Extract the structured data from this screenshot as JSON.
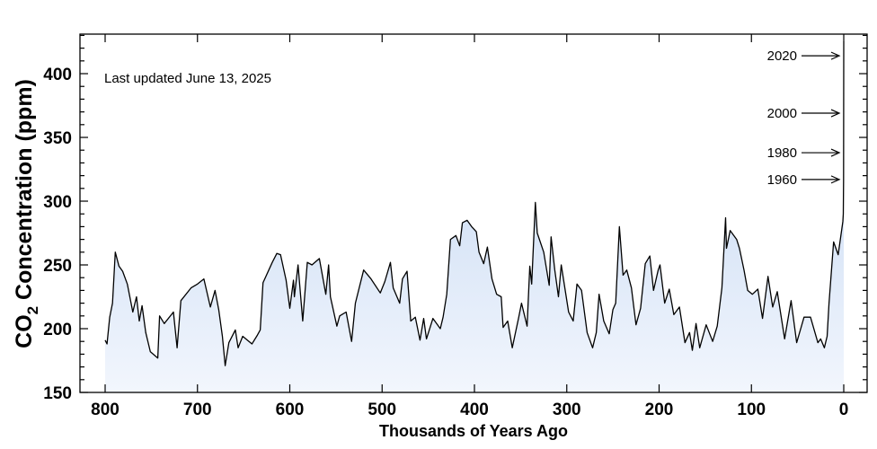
{
  "chart_data": {
    "type": "area",
    "title": "",
    "annotation": "Last updated June 13, 2025",
    "xlabel": "Thousands of Years Ago",
    "ylabel_main": "CO",
    "ylabel_sub": "2",
    "ylabel_rest": " Concentration (ppm)",
    "xlim": [
      800,
      0
    ],
    "ylim": [
      150,
      431
    ],
    "x_reversed": true,
    "x_ticks": [
      800,
      700,
      600,
      500,
      400,
      300,
      200,
      100,
      0
    ],
    "x_tick_labels": [
      "800",
      "700",
      "600",
      "500",
      "400",
      "300",
      "200",
      "100",
      "0"
    ],
    "y_ticks": [
      150,
      200,
      250,
      300,
      350,
      400
    ],
    "y_tick_labels": [
      "150",
      "200",
      "250",
      "300",
      "350",
      "400"
    ],
    "y_minor_step": 10,
    "grid": false,
    "colors": {
      "line": "#000000",
      "fill_top": "#bcd2f0",
      "fill_bottom": "#f2f6fd"
    },
    "year_markers": [
      {
        "label": "2020",
        "ppm": 414
      },
      {
        "label": "2000",
        "ppm": 369
      },
      {
        "label": "1980",
        "ppm": 338
      },
      {
        "label": "1960",
        "ppm": 317
      }
    ],
    "series": [
      {
        "x": [
          800,
          798,
          795,
          792,
          789,
          785,
          781,
          776,
          770,
          766,
          763,
          760,
          756,
          751,
          743,
          741,
          736,
          726,
          722,
          718,
          707,
          700,
          693,
          686,
          681,
          677,
          673,
          670,
          666,
          659,
          656,
          651,
          641,
          635,
          632,
          629,
          619,
          614,
          610,
          604,
          600,
          596,
          595,
          591,
          586,
          581,
          576,
          568,
          561,
          558,
          556,
          549,
          546,
          539,
          533,
          529,
          520,
          512,
          502,
          497,
          491,
          488,
          481,
          478,
          473,
          469,
          464,
          459,
          455,
          452,
          445,
          437,
          434,
          430,
          426,
          420,
          416,
          413,
          408,
          403,
          398,
          395,
          390,
          386,
          381,
          376,
          371,
          369,
          364,
          359,
          352,
          349,
          343,
          340,
          338,
          334,
          332,
          325,
          319,
          317,
          313,
          309,
          306,
          298,
          293,
          289,
          284,
          278,
          272,
          268,
          265,
          260,
          254,
          250,
          247,
          243,
          239,
          235,
          230,
          225,
          220,
          215,
          210,
          206,
          201,
          199,
          194,
          189,
          184,
          178,
          172,
          167,
          164,
          160,
          156,
          149,
          142,
          137,
          132,
          128,
          127,
          123,
          116,
          113,
          108,
          104,
          99,
          93,
          88,
          82,
          77,
          72,
          64,
          57,
          51,
          43,
          36,
          28,
          25,
          21,
          18,
          16,
          11,
          6,
          1,
          0.5,
          0.2,
          0.1,
          0
        ],
        "y": [
          191,
          188,
          209,
          220,
          260,
          249,
          245,
          235,
          213,
          225,
          206,
          218,
          197,
          182,
          177,
          210,
          204,
          213,
          185,
          222,
          232,
          235,
          239,
          217,
          230,
          215,
          194,
          171,
          189,
          199,
          185,
          194,
          188,
          195,
          199,
          236,
          252,
          259,
          258,
          238,
          216,
          238,
          225,
          250,
          206,
          252,
          250,
          255,
          227,
          250,
          225,
          202,
          210,
          213,
          190,
          220,
          246,
          239,
          228,
          237,
          252,
          232,
          220,
          239,
          245,
          206,
          209,
          191,
          208,
          192,
          208,
          200,
          209,
          227,
          270,
          273,
          265,
          283,
          285,
          280,
          276,
          260,
          251,
          264,
          239,
          227,
          225,
          201,
          206,
          185,
          209,
          220,
          202,
          249,
          235,
          299,
          275,
          260,
          234,
          272,
          246,
          225,
          250,
          213,
          206,
          235,
          230,
          197,
          185,
          197,
          227,
          206,
          196,
          215,
          220,
          280,
          242,
          246,
          232,
          203,
          216,
          251,
          257,
          230,
          246,
          250,
          220,
          231,
          211,
          217,
          189,
          197,
          183,
          204,
          185,
          203,
          190,
          202,
          232,
          287,
          263,
          277,
          270,
          263,
          246,
          230,
          227,
          231,
          208,
          241,
          217,
          229,
          192,
          222,
          189,
          209,
          209,
          189,
          192,
          185,
          194,
          220,
          268,
          258,
          284,
          290,
          317,
          369,
          425
        ]
      }
    ]
  }
}
